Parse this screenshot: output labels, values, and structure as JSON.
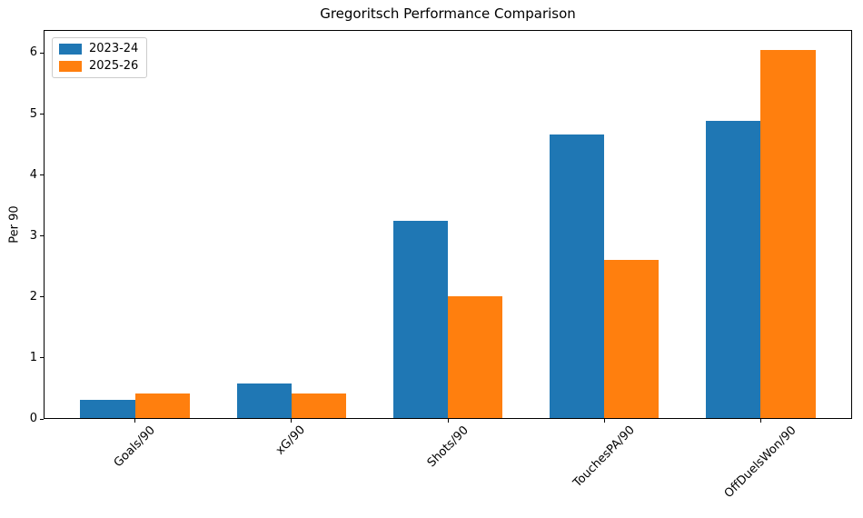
{
  "chart_data": {
    "type": "bar",
    "title": "Gregoritsch Performance Comparison",
    "xlabel": "",
    "ylabel": "Per 90",
    "categories": [
      "Goals/90",
      "xG/90",
      "Shots/90",
      "TouchesPA/90",
      "OffDuelsWon/90"
    ],
    "series": [
      {
        "name": "2023-24",
        "color": "#1f77b4",
        "values": [
          0.3,
          0.57,
          3.23,
          4.65,
          4.87
        ]
      },
      {
        "name": "2025-26",
        "color": "#ff7f0e",
        "values": [
          0.4,
          0.4,
          2.0,
          2.6,
          6.03
        ]
      }
    ],
    "ylim": [
      0,
      6.38
    ],
    "yticks": [
      0,
      1,
      2,
      3,
      4,
      5,
      6
    ],
    "grid": false,
    "legend_position": "upper left",
    "xtick_rotation": 45,
    "bar_width": 0.35,
    "axis_color": "#000000",
    "background": "#ffffff"
  }
}
